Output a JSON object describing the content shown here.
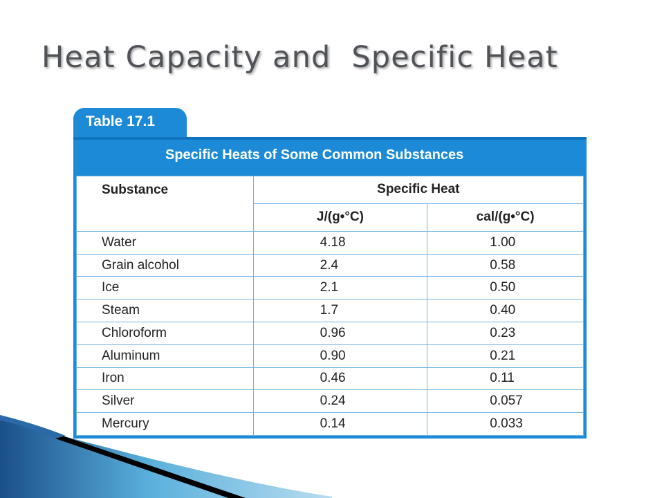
{
  "slide": {
    "title": "Heat Capacity and  Specific Heat"
  },
  "table": {
    "number_label": "Table 17.1",
    "caption": "Specific Heats of Some Common Substances",
    "headers": {
      "substance": "Substance",
      "group": "Specific Heat",
      "unit_j": "J/(g•°C)",
      "unit_cal": "cal/(g•°C)"
    },
    "rows": [
      {
        "substance": "Water",
        "j": "4.18",
        "cal": "1.00"
      },
      {
        "substance": "Grain alcohol",
        "j": "2.4",
        "cal": "0.58"
      },
      {
        "substance": "Ice",
        "j": "2.1",
        "cal": "0.50"
      },
      {
        "substance": "Steam",
        "j": "1.7",
        "cal": "0.40"
      },
      {
        "substance": "Chloroform",
        "j": "0.96",
        "cal": "0.23"
      },
      {
        "substance": "Aluminum",
        "j": "0.90",
        "cal": "0.21"
      },
      {
        "substance": "Iron",
        "j": "0.46",
        "cal": "0.11"
      },
      {
        "substance": "Silver",
        "j": "0.24",
        "cal": "0.057"
      },
      {
        "substance": "Mercury",
        "j": "0.14",
        "cal": "0.033"
      }
    ]
  },
  "colors": {
    "accent": "#1c8ad6",
    "title": "#505357",
    "grid": "#6fb4e6"
  }
}
